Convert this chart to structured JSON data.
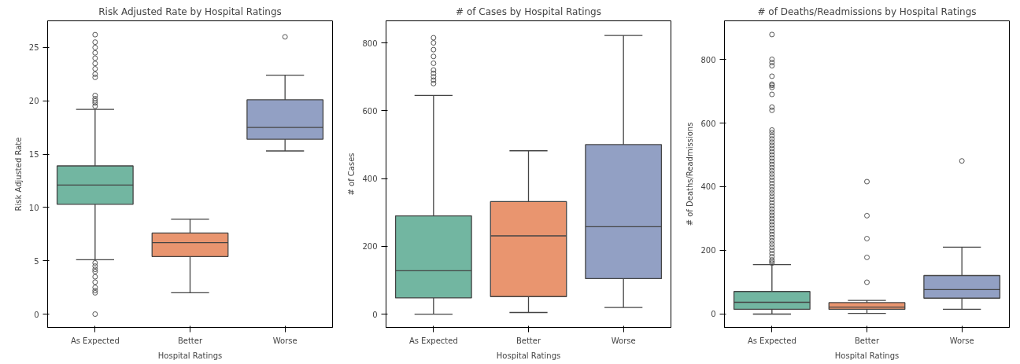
{
  "chart_data": [
    {
      "type": "box",
      "title": "Risk Adjusted Rate by Hospital Ratings",
      "xlabel": "Hospital Ratings",
      "ylabel": "Risk Adjusted Rate",
      "categories": [
        "As Expected",
        "Better",
        "Worse"
      ],
      "colors": [
        "#72b6a1",
        "#e9956f",
        "#92a0c4"
      ],
      "boxes": [
        {
          "low": 5.1,
          "q1": 10.3,
          "median": 12.1,
          "q3": 13.9,
          "high": 19.2,
          "outliers": [
            26.2,
            25.5,
            25,
            24.5,
            24,
            23.5,
            23,
            22.5,
            22.2,
            20.5,
            20.2,
            20,
            19.8,
            19.5,
            4.8,
            4.5,
            4.2,
            4,
            3.5,
            3,
            2.5,
            2.2,
            2,
            0
          ]
        },
        {
          "low": 2.0,
          "q1": 5.4,
          "median": 6.7,
          "q3": 7.6,
          "high": 8.9
        },
        {
          "low": 15.3,
          "q1": 16.4,
          "median": 17.5,
          "q3": 20.1,
          "high": 22.4,
          "outliers": [
            26
          ]
        }
      ],
      "ylim": [
        -1.25,
        27.5
      ],
      "yticks": [
        0,
        5,
        10,
        15,
        20,
        25
      ]
    },
    {
      "type": "box",
      "title": "# of Cases by Hospital Ratings",
      "xlabel": "Hospital Ratings",
      "ylabel": "# of Cases",
      "categories": [
        "As Expected",
        "Better",
        "Worse"
      ],
      "colors": [
        "#72b6a1",
        "#e9956f",
        "#92a0c4"
      ],
      "boxes": [
        {
          "low": 0,
          "q1": 48,
          "median": 128,
          "q3": 290,
          "high": 645,
          "outliers": [
            680,
            690,
            700,
            710,
            720,
            740,
            760,
            780,
            800,
            815
          ]
        },
        {
          "low": 5,
          "q1": 52,
          "median": 231,
          "q3": 332,
          "high": 482
        },
        {
          "low": 20,
          "q1": 105,
          "median": 258,
          "q3": 500,
          "high": 822
        }
      ],
      "ylim": [
        -39,
        865
      ],
      "yticks": [
        0,
        200,
        400,
        600,
        800
      ]
    },
    {
      "type": "box",
      "title": "# of Deaths/Readmissions by Hospital Ratings",
      "xlabel": "Hospital Ratings",
      "ylabel": "# of Deaths/Readmissions",
      "categories": [
        "As Expected",
        "Better",
        "Worse"
      ],
      "colors": [
        "#72b6a1",
        "#e9956f",
        "#92a0c4"
      ],
      "boxes": [
        {
          "low": 0,
          "q1": 15,
          "median": 37,
          "q3": 71,
          "high": 155,
          "outliers": [
            878,
            800,
            790,
            780,
            747,
            722,
            718,
            712,
            690,
            650,
            640,
            578,
            570,
            560,
            550,
            540,
            530,
            520,
            510,
            500,
            490,
            480,
            470,
            460,
            450,
            440,
            430,
            420,
            410,
            400,
            390,
            380,
            370,
            360,
            350,
            340,
            330,
            320,
            310,
            300,
            290,
            280,
            270,
            260,
            250,
            240,
            230,
            220,
            210,
            200,
            190,
            180,
            170,
            165,
            160
          ]
        },
        {
          "low": 2,
          "q1": 15,
          "median": 22,
          "q3": 36,
          "high": 43,
          "outliers": [
            100,
            178,
            237,
            309,
            416
          ]
        },
        {
          "low": 15,
          "q1": 50,
          "median": 77,
          "q3": 121,
          "high": 210,
          "outliers": [
            481
          ]
        }
      ],
      "ylim": [
        -42,
        921
      ],
      "yticks": [
        0,
        200,
        400,
        600,
        800
      ]
    }
  ]
}
